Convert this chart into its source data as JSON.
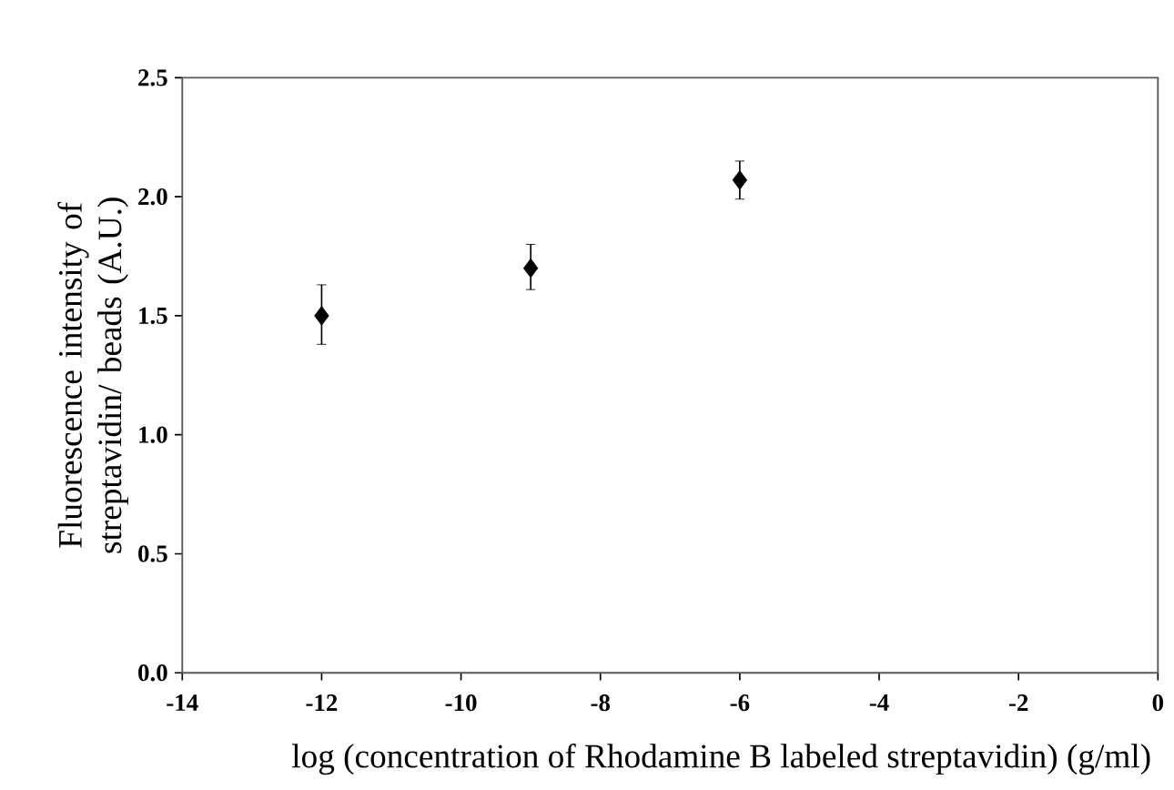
{
  "chart_data": {
    "type": "scatter",
    "xlabel": "log (concentration of Rhodamine B labeled streptavidin) (g/ml)",
    "ylabel": "Fluorescence intensity of streptavidin/ beads (A.U.)",
    "x": [
      -12,
      -9,
      -6
    ],
    "values": [
      1.5,
      1.7,
      2.07
    ],
    "errors": [
      [
        1.38,
        1.63
      ],
      [
        1.61,
        1.8
      ],
      [
        1.99,
        2.15
      ]
    ],
    "color": "#000000",
    "marker": "diamond",
    "grid": false,
    "xlim": [
      -14,
      0
    ],
    "xticks": [
      -14,
      -12,
      -10,
      -8,
      -6,
      -4,
      -2,
      0
    ],
    "ylim": [
      0,
      2.5
    ],
    "yticks": [
      {
        "value": 0,
        "label": "0.0"
      },
      {
        "value": 0.5,
        "label": "0.5"
      },
      {
        "value": 1,
        "label": "1.0"
      },
      {
        "value": 1.5,
        "label": "1.5"
      },
      {
        "value": 2,
        "label": "2.0"
      },
      {
        "value": 2.5,
        "label": "2.5"
      }
    ]
  }
}
